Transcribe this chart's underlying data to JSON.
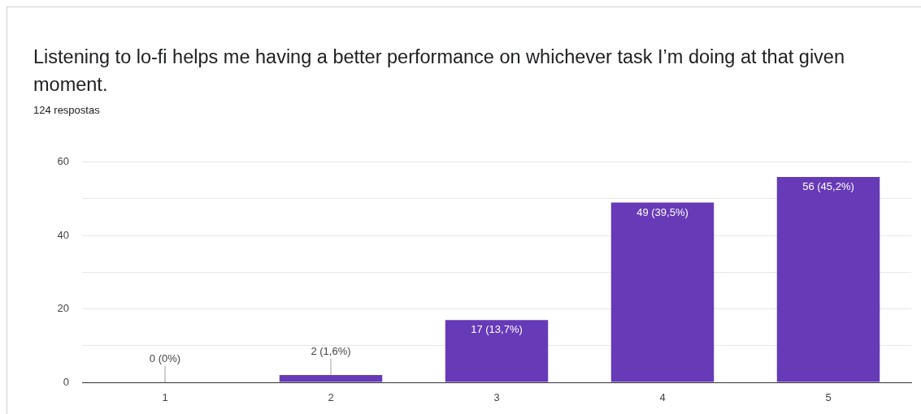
{
  "chart_data": {
    "type": "bar",
    "title": "Listening to lo-fi helps me having a better performance on whichever task I’m doing at that given moment.",
    "subtitle": "124 respostas",
    "categories": [
      "1",
      "2",
      "3",
      "4",
      "5"
    ],
    "values": [
      0,
      2,
      17,
      49,
      56
    ],
    "value_labels": [
      "0 (0%)",
      "2 (1,6%)",
      "17 (13,7%)",
      "49 (39,5%)",
      "56 (45,2%)"
    ],
    "color": "#673ab7",
    "ylim": [
      0,
      60
    ],
    "yticks": [
      0,
      {
        "value": 10,
        "label": null
      },
      20,
      {
        "value": 30,
        "label": null
      },
      40,
      {
        "value": 50,
        "label": null
      },
      60
    ],
    "grid": "y",
    "legend": false
  }
}
